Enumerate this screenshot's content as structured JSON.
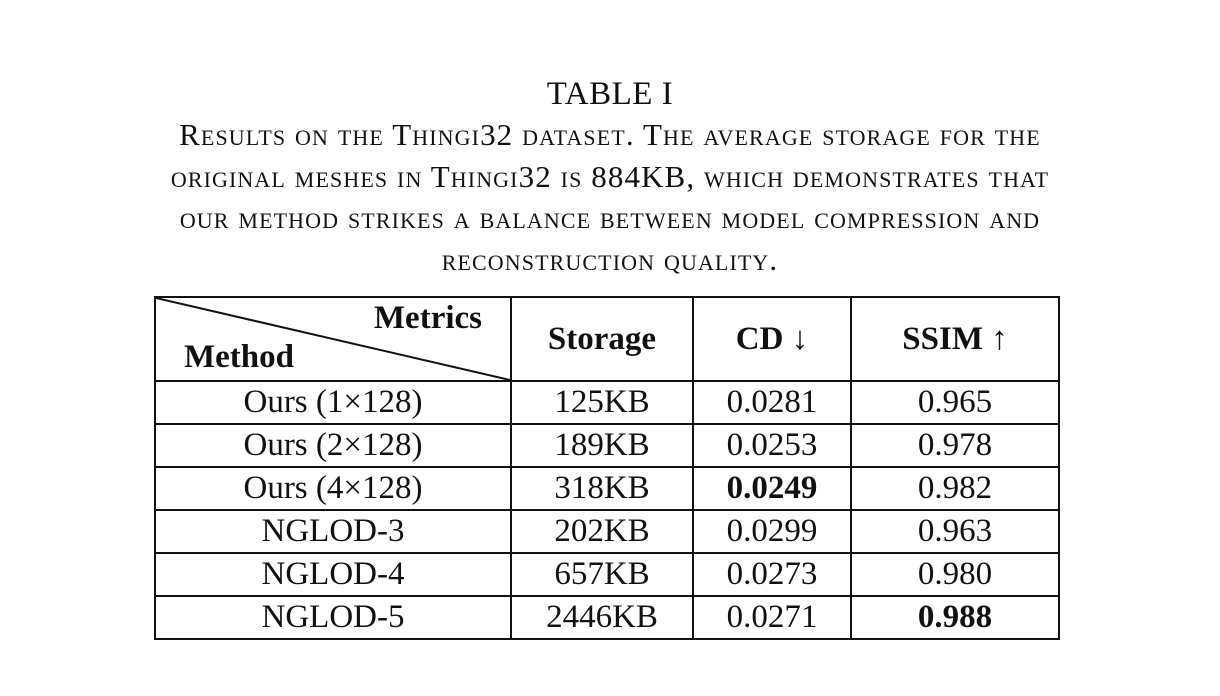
{
  "caption": {
    "label": "TABLE I",
    "lines": [
      "Results on the Thingi32 dataset. The average storage for the",
      "original meshes in Thingi32 is 884KB, which demonstrates that",
      "our method strikes a balance between model compression and",
      "reconstruction quality."
    ]
  },
  "table": {
    "corner_top": "Metrics",
    "corner_bottom": "Method",
    "columns": [
      "Storage",
      "CD ↓",
      "SSIM ↑"
    ],
    "rows": [
      {
        "method": "Ours (1×128)",
        "storage": "125KB",
        "cd": "0.0281",
        "ssim": "0.965"
      },
      {
        "method": "Ours (2×128)",
        "storage": "189KB",
        "cd": "0.0253",
        "ssim": "0.978"
      },
      {
        "method": "Ours (4×128)",
        "storage": "318KB",
        "cd": "0.0249",
        "ssim": "0.982"
      },
      {
        "method": "NGLOD-3",
        "storage": "202KB",
        "cd": "0.0299",
        "ssim": "0.963"
      },
      {
        "method": "NGLOD-4",
        "storage": "657KB",
        "cd": "0.0273",
        "ssim": "0.980"
      },
      {
        "method": "NGLOD-5",
        "storage": "2446KB",
        "cd": "0.0271",
        "ssim": "0.988"
      }
    ],
    "best": {
      "cd": "0.0249",
      "ssim": "0.988"
    }
  }
}
